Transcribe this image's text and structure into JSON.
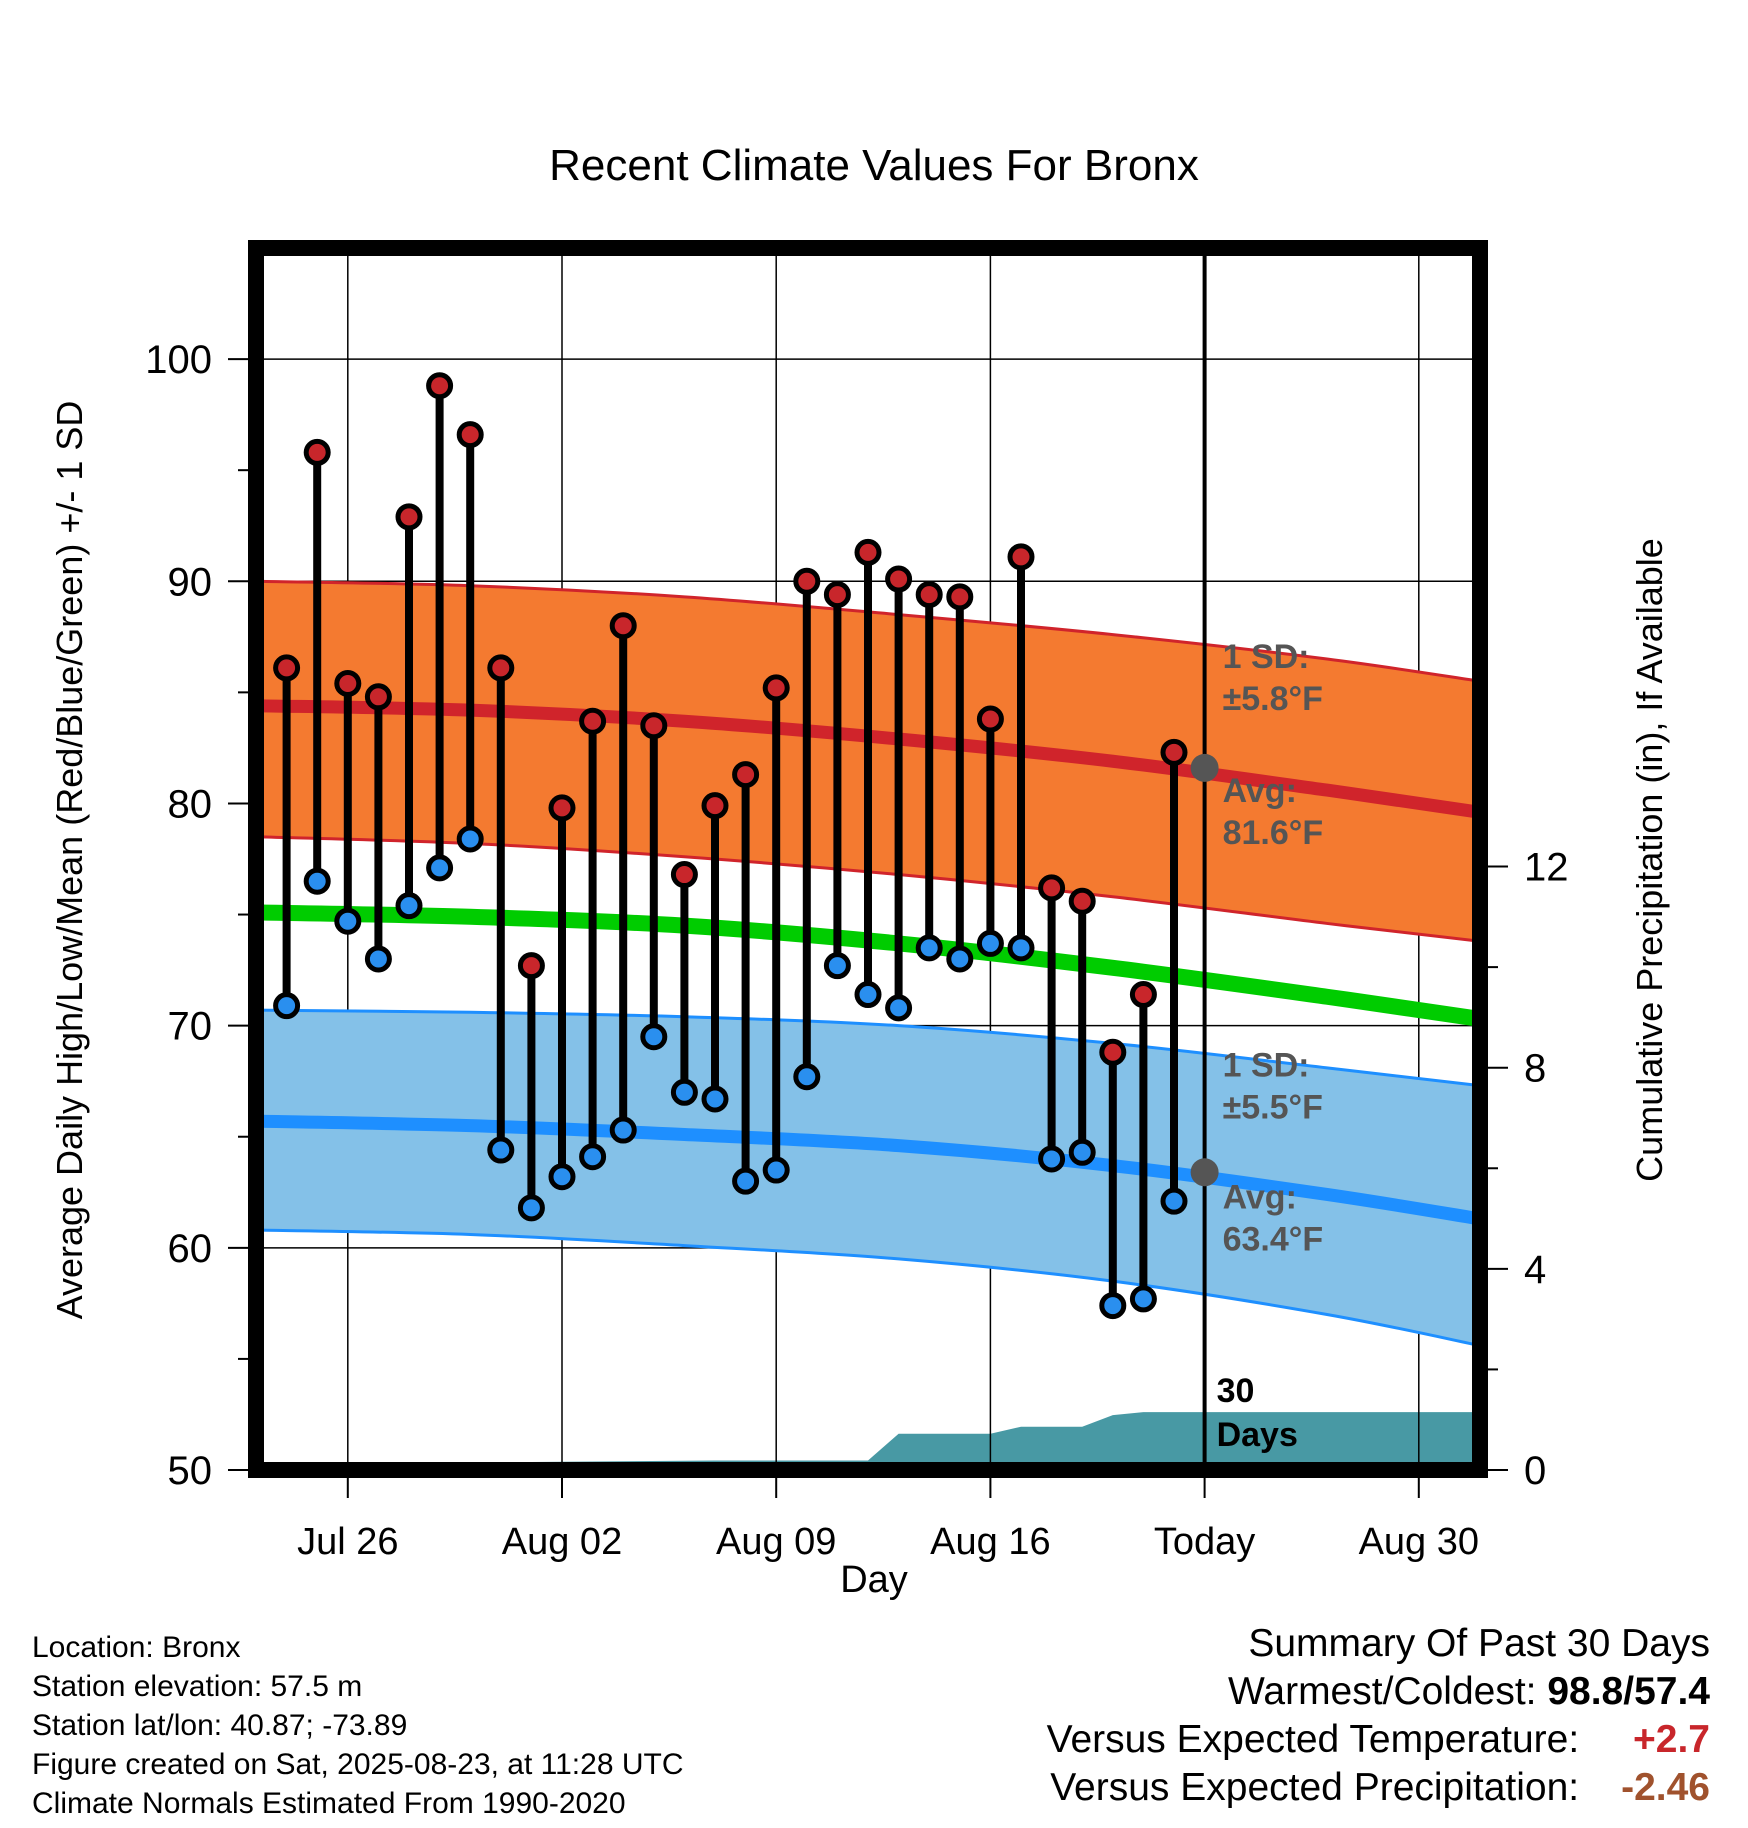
{
  "chart_data": {
    "type": "line",
    "title": "Recent Climate Values For Bronx",
    "xlabel": "Day",
    "ylabel": "Average Daily High/Low/Mean (Red/Blue/Green) +/- 1 SD",
    "y2label": "Cumulative Precipitation (in), If Available",
    "ylim": [
      50,
      105
    ],
    "y2lim": [
      0,
      24.3
    ],
    "yticks": [
      50,
      60,
      70,
      80,
      90,
      100
    ],
    "y2ticks": [
      0,
      4,
      8,
      12
    ],
    "x_date_range": [
      "2025-07-23",
      "2025-09-01"
    ],
    "x_ticks": [
      {
        "date": "2025-07-26",
        "label": "Jul 26"
      },
      {
        "date": "2025-08-02",
        "label": "Aug 02"
      },
      {
        "date": "2025-08-09",
        "label": "Aug 09"
      },
      {
        "date": "2025-08-16",
        "label": "Aug 16"
      },
      {
        "date": "2025-08-23",
        "label": "Today"
      },
      {
        "date": "2025-08-30",
        "label": "Aug 30"
      }
    ],
    "today": "2025-08-23",
    "grid": true,
    "observed": [
      {
        "date": "2025-07-24",
        "high": 86.1,
        "low": 70.9
      },
      {
        "date": "2025-07-25",
        "high": 95.8,
        "low": 76.5
      },
      {
        "date": "2025-07-26",
        "high": 85.4,
        "low": 74.7
      },
      {
        "date": "2025-07-27",
        "high": 84.8,
        "low": 73.0
      },
      {
        "date": "2025-07-28",
        "high": 92.9,
        "low": 75.4
      },
      {
        "date": "2025-07-29",
        "high": 98.8,
        "low": 77.1
      },
      {
        "date": "2025-07-30",
        "high": 96.6,
        "low": 78.4
      },
      {
        "date": "2025-07-31",
        "high": 86.1,
        "low": 64.4
      },
      {
        "date": "2025-08-01",
        "high": 72.7,
        "low": 61.8
      },
      {
        "date": "2025-08-02",
        "high": 79.8,
        "low": 63.2
      },
      {
        "date": "2025-08-03",
        "high": 83.7,
        "low": 64.1
      },
      {
        "date": "2025-08-04",
        "high": 88.0,
        "low": 65.3
      },
      {
        "date": "2025-08-05",
        "high": 83.5,
        "low": 69.5
      },
      {
        "date": "2025-08-06",
        "high": 76.8,
        "low": 67.0
      },
      {
        "date": "2025-08-07",
        "high": 79.9,
        "low": 66.7
      },
      {
        "date": "2025-08-08",
        "high": 81.3,
        "low": 63.0
      },
      {
        "date": "2025-08-09",
        "high": 85.2,
        "low": 63.5
      },
      {
        "date": "2025-08-10",
        "high": 90.0,
        "low": 67.7
      },
      {
        "date": "2025-08-11",
        "high": 89.4,
        "low": 72.7
      },
      {
        "date": "2025-08-12",
        "high": 91.3,
        "low": 71.4
      },
      {
        "date": "2025-08-13",
        "high": 90.1,
        "low": 70.8
      },
      {
        "date": "2025-08-14",
        "high": 89.4,
        "low": 73.5
      },
      {
        "date": "2025-08-15",
        "high": 89.3,
        "low": 73.0
      },
      {
        "date": "2025-08-16",
        "high": 83.8,
        "low": 73.7
      },
      {
        "date": "2025-08-17",
        "high": 91.1,
        "low": 73.5
      },
      {
        "date": "2025-08-18",
        "high": 76.2,
        "low": 64.0
      },
      {
        "date": "2025-08-19",
        "high": 75.6,
        "low": 64.3
      },
      {
        "date": "2025-08-20",
        "high": 68.8,
        "low": 57.4
      },
      {
        "date": "2025-08-21",
        "high": 71.4,
        "low": 57.7
      },
      {
        "date": "2025-08-22",
        "high": 82.3,
        "low": 62.1
      }
    ],
    "normals": {
      "dates": [
        "2025-07-23",
        "2025-07-30",
        "2025-08-06",
        "2025-08-13",
        "2025-08-20",
        "2025-08-27",
        "2025-09-01"
      ],
      "high_mean": [
        84.4,
        84.2,
        83.7,
        82.9,
        81.9,
        80.6,
        79.6
      ],
      "high_sd_upper": [
        90.0,
        89.8,
        89.3,
        88.5,
        87.6,
        86.5,
        85.5
      ],
      "high_sd_lower": [
        78.5,
        78.2,
        77.6,
        76.8,
        75.8,
        74.6,
        73.8
      ],
      "mean": [
        75.1,
        74.9,
        74.5,
        73.7,
        72.6,
        71.3,
        70.3
      ],
      "low_mean": [
        65.7,
        65.5,
        65.1,
        64.6,
        63.7,
        62.4,
        61.3
      ],
      "low_sd_upper": [
        70.7,
        70.6,
        70.4,
        70.0,
        69.2,
        68.1,
        67.3
      ],
      "low_sd_lower": [
        60.8,
        60.6,
        60.1,
        59.5,
        58.5,
        57.0,
        55.6
      ]
    },
    "today_high_avg": 81.6,
    "today_low_avg": 63.4,
    "precipitation": {
      "dates": [
        "2025-07-23",
        "2025-07-30",
        "2025-07-31",
        "2025-08-01",
        "2025-08-07",
        "2025-08-12",
        "2025-08-13",
        "2025-08-16",
        "2025-08-17",
        "2025-08-19",
        "2025-08-20",
        "2025-08-21",
        "2025-09-01"
      ],
      "cumulative": [
        0.0,
        0.0,
        0.0,
        0.16,
        0.19,
        0.19,
        0.72,
        0.72,
        0.86,
        0.86,
        1.09,
        1.15,
        1.15
      ]
    },
    "annotations": {
      "high_sd_label": "1 SD:",
      "high_sd_value": "±5.8°F",
      "high_avg_label": "Avg:",
      "high_avg_value": "81.6°F",
      "low_sd_label": "1 SD:",
      "low_sd_value": "±5.5°F",
      "low_avg_label": "Avg:",
      "low_avg_value": "63.4°F",
      "days_label_1": "30",
      "days_label_2": "Days"
    },
    "colors": {
      "high_band": "#f47a30",
      "high_line": "#d0242b",
      "low_band": "#84c1e8",
      "low_line": "#1e8fff",
      "mean_line": "#00cc00",
      "precip_fill": "#4899a4",
      "high_dot": "#c8262b",
      "low_dot": "#2a8fef",
      "avg_dot": "#555555",
      "annotation_text": "#555555"
    }
  },
  "station": {
    "location": "Location: Bronx",
    "elevation": "Station elevation: 57.5 m",
    "latlon": "Station lat/lon: 40.87; -73.89",
    "created": "Figure created on Sat, 2025-08-23, at 11:28 UTC",
    "normals": "Climate Normals Estimated From 1990-2020"
  },
  "summary": {
    "title": "Summary Of Past 30 Days",
    "warmest_label": "Warmest/Coldest:",
    "warmest_value": "98.8/57.4",
    "temp_label": "Versus Expected Temperature:",
    "temp_value": "+2.7",
    "precip_label": "Versus Expected Precipitation:",
    "precip_value": "-2.46"
  }
}
